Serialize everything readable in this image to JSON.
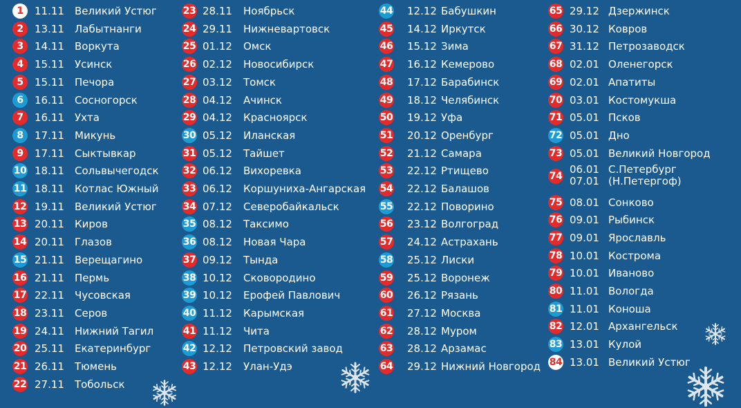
{
  "colors": {
    "background": "#1a5a8e",
    "red": "#e42a2a",
    "blue": "#1e9bd3",
    "white": "#ffffff"
  },
  "columns": [
    [
      {
        "n": "1",
        "date": "11.11",
        "city": "Великий Устюг",
        "color": "white"
      },
      {
        "n": "2",
        "date": "13.11",
        "city": "Лабытнанги",
        "color": "red"
      },
      {
        "n": "3",
        "date": "14.11",
        "city": "Воркута",
        "color": "red"
      },
      {
        "n": "4",
        "date": "15.11",
        "city": "Усинск",
        "color": "red"
      },
      {
        "n": "5",
        "date": "15.11",
        "city": "Печора",
        "color": "red"
      },
      {
        "n": "6",
        "date": "16.11",
        "city": "Сосногорск",
        "color": "blue"
      },
      {
        "n": "7",
        "date": "16.11",
        "city": "Ухта",
        "color": "red"
      },
      {
        "n": "8",
        "date": "17.11",
        "city": "Микунь",
        "color": "blue"
      },
      {
        "n": "9",
        "date": "17.11",
        "city": "Сыктывкар",
        "color": "red"
      },
      {
        "n": "10",
        "date": "18.11",
        "city": "Сольвычегодск",
        "color": "blue"
      },
      {
        "n": "11",
        "date": "18.11",
        "city": "Котлас Южный",
        "color": "blue"
      },
      {
        "n": "12",
        "date": "19.11",
        "city": "Великий Устюг",
        "color": "red"
      },
      {
        "n": "13",
        "date": "20.11",
        "city": "Киров",
        "color": "red"
      },
      {
        "n": "14",
        "date": "20.11",
        "city": "Глазов",
        "color": "red"
      },
      {
        "n": "15",
        "date": "21.11",
        "city": "Верещагино",
        "color": "blue"
      },
      {
        "n": "16",
        "date": "21.11",
        "city": "Пермь",
        "color": "red"
      },
      {
        "n": "17",
        "date": "22.11",
        "city": "Чусовская",
        "color": "red"
      },
      {
        "n": "18",
        "date": "23.11",
        "city": "Серов",
        "color": "red"
      },
      {
        "n": "19",
        "date": "24.11",
        "city": "Нижний Тагил",
        "color": "red"
      },
      {
        "n": "20",
        "date": "25.11",
        "city": "Екатеринбург",
        "color": "red"
      },
      {
        "n": "21",
        "date": "26.11",
        "city": "Тюмень",
        "color": "red"
      },
      {
        "n": "22",
        "date": "27.11",
        "city": "Тобольск",
        "color": "red"
      }
    ],
    [
      {
        "n": "23",
        "date": "28.11",
        "city": "Ноябрьск",
        "color": "red"
      },
      {
        "n": "24",
        "date": "29.11",
        "city": "Нижневартовск",
        "color": "red"
      },
      {
        "n": "25",
        "date": "01.12",
        "city": "Омск",
        "color": "red"
      },
      {
        "n": "26",
        "date": "02.12",
        "city": "Новосибирск",
        "color": "red"
      },
      {
        "n": "27",
        "date": "03.12",
        "city": "Томск",
        "color": "red"
      },
      {
        "n": "28",
        "date": "04.12",
        "city": "Ачинск",
        "color": "red"
      },
      {
        "n": "29",
        "date": "04.12",
        "city": "Красноярск",
        "color": "red"
      },
      {
        "n": "30",
        "date": "05.12",
        "city": "Иланская",
        "color": "blue"
      },
      {
        "n": "31",
        "date": "05.12",
        "city": "Тайшет",
        "color": "red"
      },
      {
        "n": "32",
        "date": "06.12",
        "city": "Вихоревка",
        "color": "red"
      },
      {
        "n": "33",
        "date": "06.12",
        "city": "Коршуниха-Ангарская",
        "color": "red"
      },
      {
        "n": "34",
        "date": "07.12",
        "city": "Северобайкальск",
        "color": "red"
      },
      {
        "n": "35",
        "date": "08.12",
        "city": "Таксимо",
        "color": "blue"
      },
      {
        "n": "36",
        "date": "08.12",
        "city": "Новая Чара",
        "color": "blue"
      },
      {
        "n": "37",
        "date": "09.12",
        "city": "Тында",
        "color": "red"
      },
      {
        "n": "38",
        "date": "10.12",
        "city": "Сковородино",
        "color": "blue"
      },
      {
        "n": "39",
        "date": "10.12",
        "city": "Ерофей Павлович",
        "color": "blue"
      },
      {
        "n": "40",
        "date": "11.12",
        "city": "Карымская",
        "color": "blue"
      },
      {
        "n": "41",
        "date": "11.12",
        "city": "Чита",
        "color": "red"
      },
      {
        "n": "42",
        "date": "12.12",
        "city": "Петровский завод",
        "color": "blue"
      },
      {
        "n": "43",
        "date": "12.12",
        "city": "Улан-Удэ",
        "color": "red"
      }
    ],
    [
      {
        "n": "44",
        "date": "12.12",
        "city": "Бабушкин",
        "color": "blue"
      },
      {
        "n": "45",
        "date": "14.12",
        "city": "Иркутск",
        "color": "red"
      },
      {
        "n": "46",
        "date": "15.12",
        "city": "Зима",
        "color": "red"
      },
      {
        "n": "47",
        "date": "16.12",
        "city": "Кемерово",
        "color": "red"
      },
      {
        "n": "48",
        "date": "17.12",
        "city": "Барабинск",
        "color": "red"
      },
      {
        "n": "49",
        "date": "18.12",
        "city": "Челябинск",
        "color": "red"
      },
      {
        "n": "50",
        "date": "19.12",
        "city": "Уфа",
        "color": "red"
      },
      {
        "n": "51",
        "date": "20.12",
        "city": "Оренбург",
        "color": "red"
      },
      {
        "n": "52",
        "date": "21.12",
        "city": "Самара",
        "color": "red"
      },
      {
        "n": "53",
        "date": "22.12",
        "city": "Ртищево",
        "color": "red"
      },
      {
        "n": "54",
        "date": "22.12",
        "city": "Балашов",
        "color": "red"
      },
      {
        "n": "55",
        "date": "22.12",
        "city": "Поворино",
        "color": "blue"
      },
      {
        "n": "56",
        "date": "23.12",
        "city": "Волгоград",
        "color": "red"
      },
      {
        "n": "57",
        "date": "24.12",
        "city": "Астрахань",
        "color": "red"
      },
      {
        "n": "58",
        "date": "25.12",
        "city": "Лиски",
        "color": "blue"
      },
      {
        "n": "59",
        "date": "25.12",
        "city": "Воронеж",
        "color": "red"
      },
      {
        "n": "60",
        "date": "26.12",
        "city": "Рязань",
        "color": "red"
      },
      {
        "n": "61",
        "date": "27.12",
        "city": "Москва",
        "color": "red"
      },
      {
        "n": "62",
        "date": "28.12",
        "city": "Муром",
        "color": "red"
      },
      {
        "n": "63",
        "date": "28.12",
        "city": "Арзамас",
        "color": "red"
      },
      {
        "n": "64",
        "date": "29.12",
        "city": "Нижний Новгород",
        "color": "red"
      }
    ],
    [
      {
        "n": "65",
        "date": "29.12",
        "city": "Дзержинск",
        "color": "red"
      },
      {
        "n": "66",
        "date": "30.12",
        "city": "Ковров",
        "color": "red"
      },
      {
        "n": "67",
        "date": "31.12",
        "city": "Петрозаводск",
        "color": "red"
      },
      {
        "n": "68",
        "date": "02.01",
        "city": "Оленегорск",
        "color": "red"
      },
      {
        "n": "69",
        "date": "02.01",
        "city": "Апатиты",
        "color": "red"
      },
      {
        "n": "70",
        "date": "03.01",
        "city": "Костомукша",
        "color": "red"
      },
      {
        "n": "71",
        "date": "05.01",
        "city": "Псков",
        "color": "red"
      },
      {
        "n": "72",
        "date": "05.01",
        "city": "Дно",
        "color": "blue"
      },
      {
        "n": "73",
        "date": "05.01",
        "city": "Великий Новгород",
        "color": "red"
      },
      {
        "n": "74",
        "date": "06.01",
        "city": "С.Петербург",
        "date2": "07.01",
        "city2": "(Н.Петергоф)",
        "color": "red"
      },
      {
        "n": "75",
        "date": "08.01",
        "city": "Сонково",
        "color": "red"
      },
      {
        "n": "76",
        "date": "09.01",
        "city": "Рыбинск",
        "color": "red"
      },
      {
        "n": "77",
        "date": "09.01",
        "city": "Ярославль",
        "color": "red"
      },
      {
        "n": "78",
        "date": "10.01",
        "city": "Кострома",
        "color": "red"
      },
      {
        "n": "79",
        "date": "10.01",
        "city": "Иваново",
        "color": "red"
      },
      {
        "n": "80",
        "date": "11.01",
        "city": "Вологда",
        "color": "red"
      },
      {
        "n": "81",
        "date": "11.01",
        "city": "Коноша",
        "color": "blue"
      },
      {
        "n": "82",
        "date": "12.01",
        "city": "Архангельск",
        "color": "red"
      },
      {
        "n": "83",
        "date": "13.01",
        "city": "Кулой",
        "color": "blue"
      },
      {
        "n": "84",
        "date": "13.01",
        "city": "Великий Устюг",
        "color": "white"
      }
    ]
  ],
  "decorations": [
    "snowflake-icon",
    "snowflake-icon",
    "snowflake-icon",
    "snowflake-icon"
  ]
}
